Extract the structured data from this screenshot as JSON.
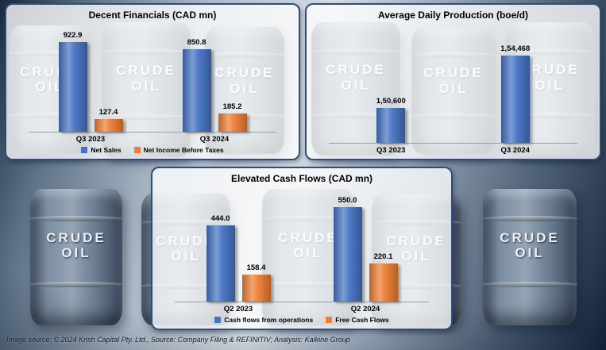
{
  "page": {
    "footer": "Image source: © 2024 Krish Capital Pty. Ltd., Source: Company Filing & REFINITIV; Analysis: Kalkine Group",
    "barrel_label": {
      "line1": "CRUDE",
      "line2": "OIL"
    }
  },
  "colors": {
    "series_blue": "#4472C4",
    "series_orange": "#ED7D31",
    "panel_border": "#2E4D7B",
    "axis_line": "#9AA0A6"
  },
  "chart_data": [
    {
      "type": "bar",
      "title": "Decent Financials (CAD mn)",
      "categories": [
        "Q3 2023",
        "Q3 2024"
      ],
      "series": [
        {
          "name": "Net Sales",
          "color": "#4472C4",
          "values": [
            922.9,
            850.8
          ],
          "labels": [
            "922.9",
            "850.8"
          ]
        },
        {
          "name": "Net Income Before Taxes",
          "color": "#ED7D31",
          "values": [
            127.4,
            185.2
          ],
          "labels": [
            "127.4",
            "185.2"
          ]
        }
      ],
      "ylim": [
        0,
        1000
      ],
      "grid": false,
      "legend_position": "bottom"
    },
    {
      "type": "bar",
      "title": "Average Daily Production (boe/d)",
      "categories": [
        "Q3 2023",
        "Q3 2024"
      ],
      "series": [
        {
          "name": "Average Daily Production",
          "color": "#4472C4",
          "values": [
            150600,
            154468
          ],
          "labels": [
            "1,50,600",
            "1,54,468"
          ]
        }
      ],
      "ylim": [
        148000,
        156000
      ],
      "grid": false,
      "legend_position": "none"
    },
    {
      "type": "bar",
      "title": "Elevated Cash Flows (CAD mn)",
      "categories": [
        "Q2 2023",
        "Q2 2024"
      ],
      "series": [
        {
          "name": "Cash flows from operations",
          "color": "#4472C4",
          "values": [
            444.0,
            550.0
          ],
          "labels": [
            "444.0",
            "550.0"
          ]
        },
        {
          "name": "Free Cash Flows",
          "color": "#ED7D31",
          "values": [
            158.4,
            220.1
          ],
          "labels": [
            "158.4",
            "220.1"
          ]
        }
      ],
      "ylim": [
        0,
        600
      ],
      "grid": false,
      "legend_position": "bottom"
    }
  ]
}
